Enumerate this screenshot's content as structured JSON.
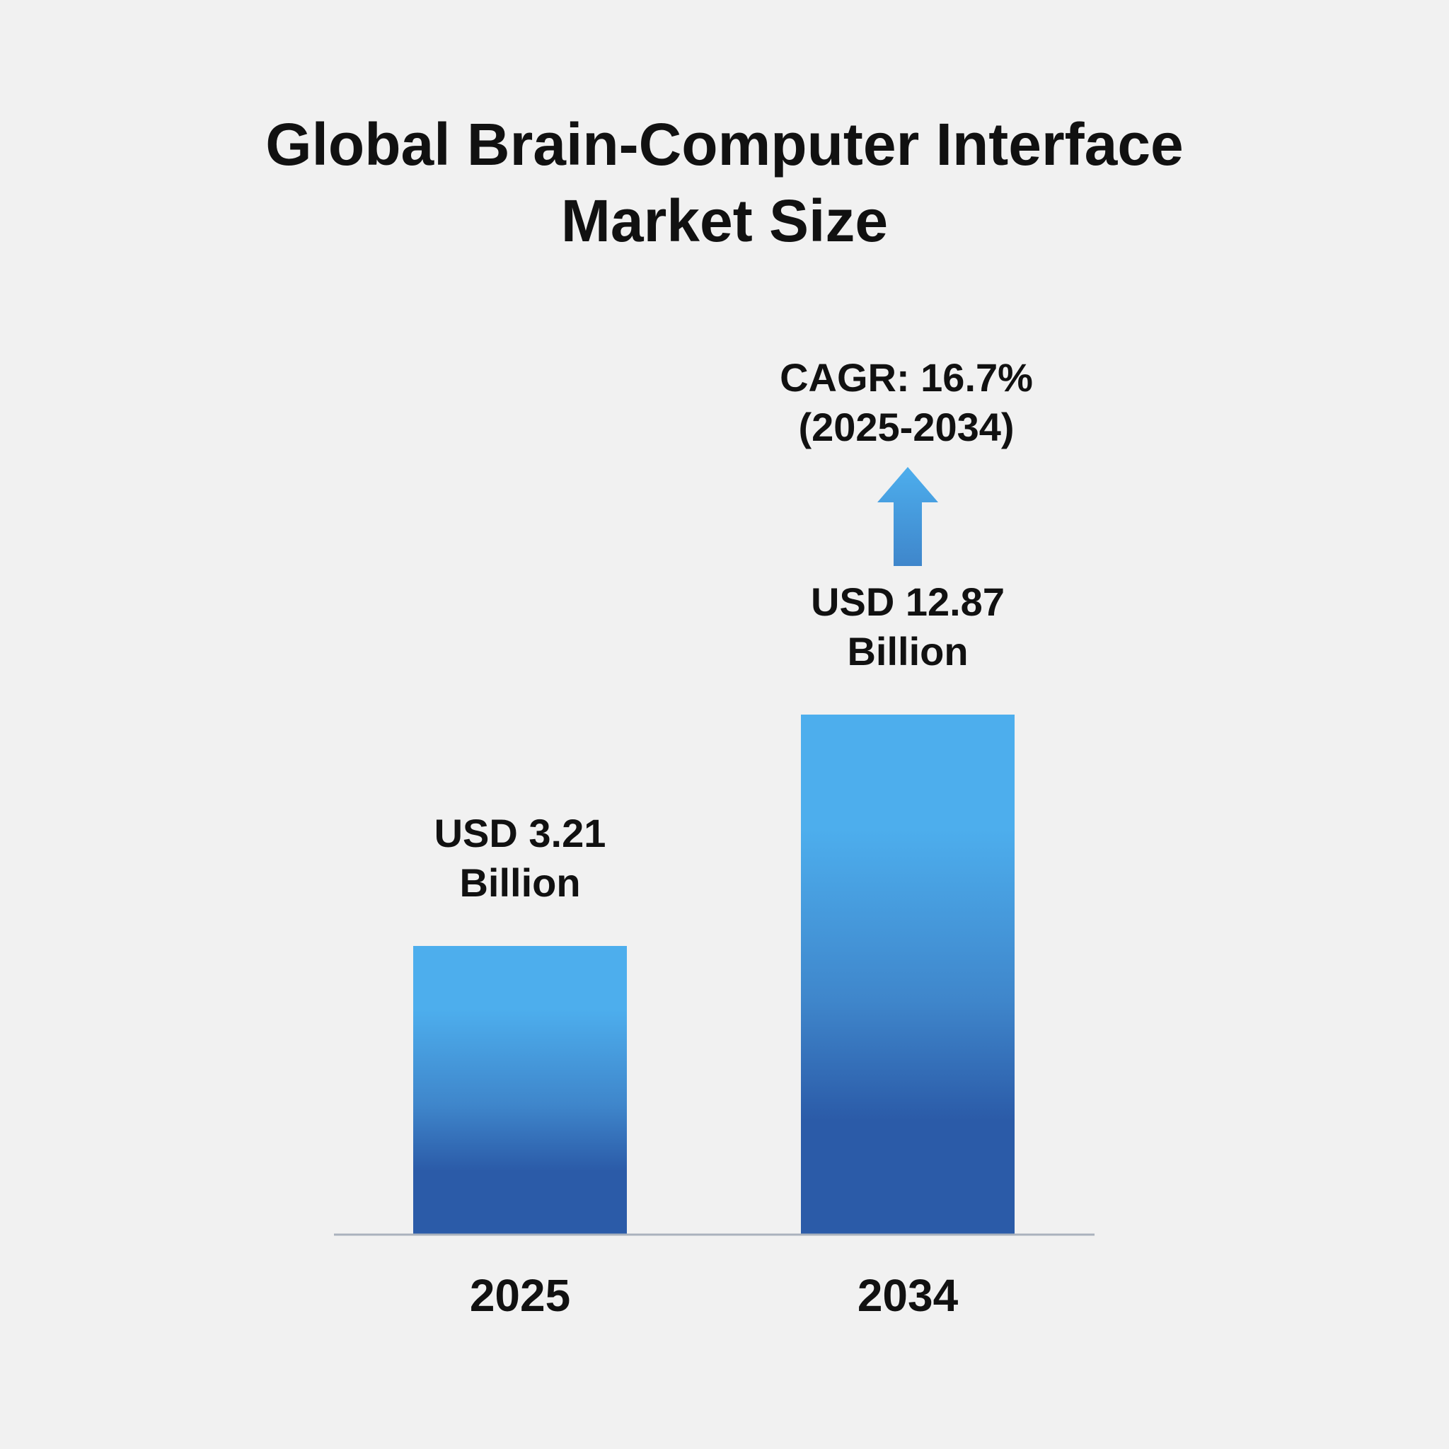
{
  "chart_data": {
    "type": "bar",
    "title_lines": [
      "Global Brain-Computer Interface",
      "Market Size"
    ],
    "categories": [
      "2025",
      "2034"
    ],
    "values": [
      3.21,
      12.87
    ],
    "value_labels": [
      [
        "USD 3.21",
        "Billion"
      ],
      [
        "USD 12.87",
        "Billion"
      ]
    ],
    "annotation": {
      "lines": [
        "CAGR: 16.7%",
        "(2025-2034)"
      ],
      "arrow": "up-arrow-icon",
      "attached_to": "2034"
    },
    "xlabel": "",
    "ylabel": "",
    "grid": false,
    "legend": "none",
    "colors": {
      "bar_top": "#4daeed",
      "bar_mid": "#3f86cb",
      "bar_bottom": "#2b5ba8",
      "baseline": "#aab2bd",
      "text": "#111111",
      "background": "#f1f1f1"
    }
  }
}
